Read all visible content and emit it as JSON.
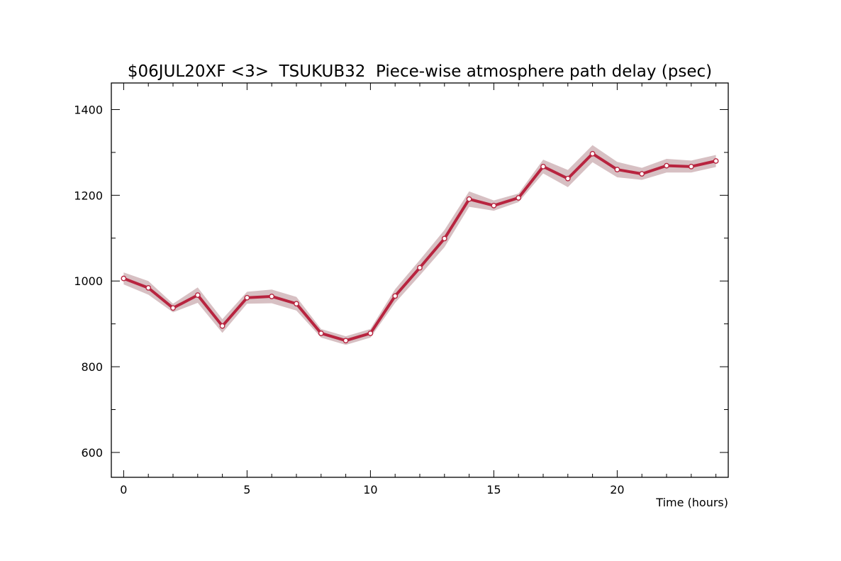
{
  "chart_data": {
    "type": "line",
    "title": "$06JUL20XF <3>  TSUKUB32  Piece-wise atmosphere path delay (psec)",
    "xlabel": "Time (hours)",
    "ylabel": "",
    "xlim": [
      -0.5,
      24.5
    ],
    "ylim": [
      542,
      1462
    ],
    "x_ticks": [
      0,
      5,
      10,
      15,
      20
    ],
    "x_tick_labels": [
      "0",
      "5",
      "10",
      "15",
      "20"
    ],
    "y_ticks": [
      600,
      800,
      1000,
      1200,
      1400
    ],
    "y_tick_labels": [
      "600",
      "800",
      "1000",
      "1200",
      "1400"
    ],
    "grid": false,
    "legend": "none",
    "colors": {
      "line": "#b8243f",
      "band": "#d7c0c3",
      "marker_fill": "#ffffff",
      "axis": "#000000"
    },
    "series": [
      {
        "x": [
          0,
          1,
          2,
          3,
          4,
          5,
          6,
          7,
          8,
          9,
          10,
          11,
          12,
          13,
          14,
          15,
          16,
          17,
          18,
          19,
          20,
          21,
          22,
          23,
          24
        ],
        "y": [
          1006,
          984,
          937,
          967,
          895,
          961,
          964,
          947,
          878,
          861,
          878,
          965,
          1031,
          1099,
          1191,
          1176,
          1194,
          1267,
          1239,
          1297,
          1260,
          1250,
          1269,
          1267,
          1280
        ],
        "uncertainty": [
          14,
          16,
          10,
          18,
          16,
          14,
          16,
          16,
          10,
          10,
          10,
          16,
          18,
          20,
          18,
          12,
          10,
          16,
          20,
          20,
          18,
          14,
          16,
          14,
          14
        ]
      }
    ]
  }
}
